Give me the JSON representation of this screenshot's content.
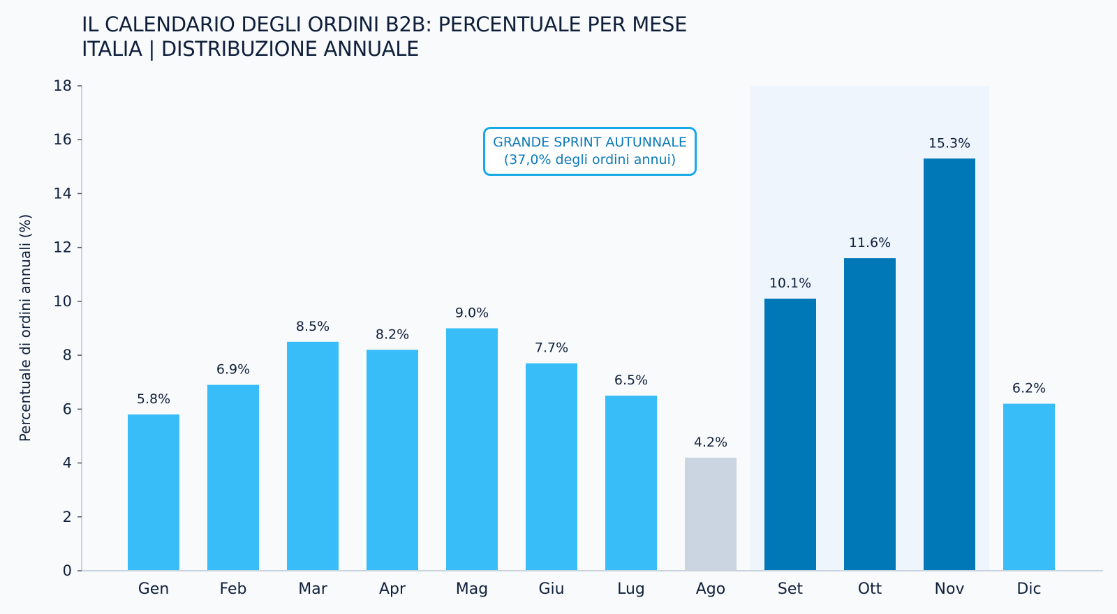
{
  "chart_data": {
    "type": "bar",
    "title": "IL CALENDARIO DEGLI ORDINI B2B: PERCENTUALE PER MESE",
    "subtitle": "ITALIA | DISTRIBUZIONE ANNUALE",
    "ylabel": "Percentuale di ordini annuali (%)",
    "xlabel": "",
    "categories": [
      "Gen",
      "Feb",
      "Mar",
      "Apr",
      "Mag",
      "Giu",
      "Lug",
      "Ago",
      "Set",
      "Ott",
      "Nov",
      "Dic"
    ],
    "values": [
      5.8,
      6.9,
      8.5,
      8.2,
      9.0,
      7.7,
      6.5,
      4.2,
      10.1,
      11.6,
      15.3,
      6.2
    ],
    "data_labels": [
      "5.8%",
      "6.9%",
      "8.5%",
      "8.2%",
      "9.0%",
      "7.7%",
      "6.5%",
      "4.2%",
      "10.1%",
      "11.6%",
      "15.3%",
      "6.2%"
    ],
    "ylim": [
      0,
      18
    ],
    "yticks": [
      0,
      2,
      4,
      6,
      8,
      10,
      12,
      14,
      16,
      18
    ],
    "grid": false,
    "legend": "none",
    "highlight_region": [
      "Set",
      "Nov"
    ],
    "annotation": {
      "line1": "GRANDE SPRINT AUTUNNALE",
      "line2": "(37,0% degli ordini annui)"
    },
    "colors": {
      "default": "#38bdf8",
      "low": "#cbd5e1",
      "peak": "#0077b6",
      "highlight_band": "#eef5fc",
      "axis": "#c9d3df"
    },
    "bar_color_keys": [
      "default",
      "default",
      "default",
      "default",
      "default",
      "default",
      "default",
      "low",
      "peak",
      "peak",
      "peak",
      "default"
    ]
  }
}
